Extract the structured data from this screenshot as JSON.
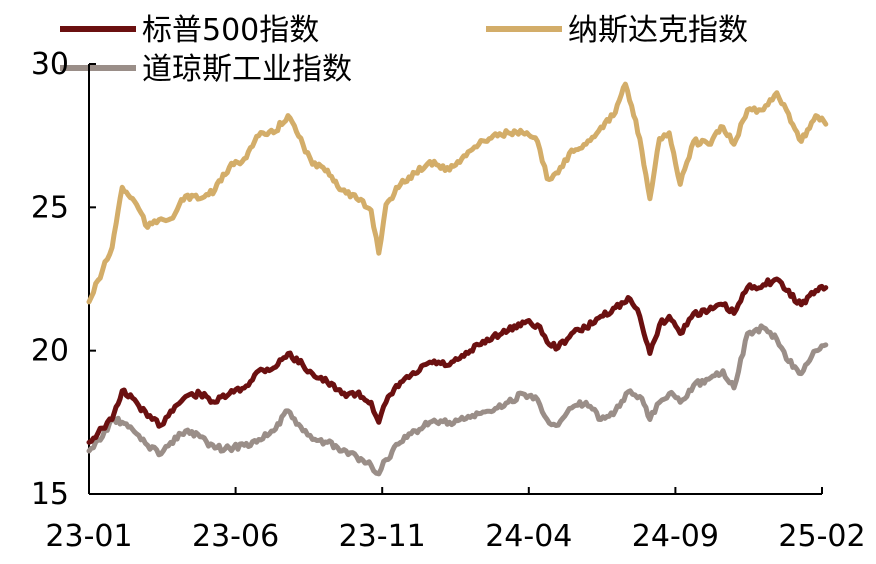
{
  "chart_data": {
    "type": "line",
    "title": "",
    "xlabel": "",
    "ylabel": "",
    "ylim": [
      15,
      30
    ],
    "yticks": [
      "15",
      "20",
      "25",
      "30"
    ],
    "xticks": [
      "23-01",
      "23-06",
      "23-11",
      "24-04",
      "24-09",
      "25-02"
    ],
    "xlim_months": [
      "2023-01",
      "2025-02"
    ],
    "grid": false,
    "legend_position": "top",
    "series": [
      {
        "name": "标普500指数",
        "color": "#6b1010",
        "points": [
          [
            "2023-01-01",
            16.8
          ],
          [
            "2023-01-15",
            17.3
          ],
          [
            "2023-01-25",
            17.6
          ],
          [
            "2023-02-05",
            18.6
          ],
          [
            "2023-02-20",
            18.2
          ],
          [
            "2023-03-01",
            17.7
          ],
          [
            "2023-03-15",
            17.4
          ],
          [
            "2023-03-25",
            17.9
          ],
          [
            "2023-04-10",
            18.4
          ],
          [
            "2023-04-25",
            18.5
          ],
          [
            "2023-05-10",
            18.2
          ],
          [
            "2023-05-25",
            18.5
          ],
          [
            "2023-06-10",
            18.7
          ],
          [
            "2023-06-25",
            19.3
          ],
          [
            "2023-07-10",
            19.4
          ],
          [
            "2023-07-25",
            19.9
          ],
          [
            "2023-08-10",
            19.5
          ],
          [
            "2023-08-20",
            19.2
          ],
          [
            "2023-09-05",
            18.9
          ],
          [
            "2023-09-20",
            18.5
          ],
          [
            "2023-10-05",
            18.5
          ],
          [
            "2023-10-20",
            18.2
          ],
          [
            "2023-10-28",
            17.5
          ],
          [
            "2023-11-05",
            18.2
          ],
          [
            "2023-11-20",
            18.9
          ],
          [
            "2023-12-05",
            19.2
          ],
          [
            "2023-12-20",
            19.6
          ],
          [
            "2024-01-10",
            19.5
          ],
          [
            "2024-01-25",
            19.8
          ],
          [
            "2024-02-10",
            20.2
          ],
          [
            "2024-02-25",
            20.5
          ],
          [
            "2024-03-10",
            20.7
          ],
          [
            "2024-03-25",
            21.0
          ],
          [
            "2024-04-10",
            20.9
          ],
          [
            "2024-04-20",
            20.3
          ],
          [
            "2024-05-01",
            20.1
          ],
          [
            "2024-05-15",
            20.6
          ],
          [
            "2024-05-30",
            20.8
          ],
          [
            "2024-06-15",
            21.2
          ],
          [
            "2024-06-30",
            21.5
          ],
          [
            "2024-07-15",
            21.8
          ],
          [
            "2024-07-25",
            21.2
          ],
          [
            "2024-08-05",
            19.9
          ],
          [
            "2024-08-15",
            20.9
          ],
          [
            "2024-08-25",
            21.2
          ],
          [
            "2024-09-06",
            20.6
          ],
          [
            "2024-09-20",
            21.3
          ],
          [
            "2024-10-05",
            21.4
          ],
          [
            "2024-10-20",
            21.6
          ],
          [
            "2024-11-01",
            21.3
          ],
          [
            "2024-11-15",
            22.2
          ],
          [
            "2024-12-01",
            22.3
          ],
          [
            "2024-12-15",
            22.5
          ],
          [
            "2024-12-25",
            22.1
          ],
          [
            "2025-01-10",
            21.6
          ],
          [
            "2025-01-25",
            22.1
          ],
          [
            "2025-02-05",
            22.2
          ]
        ]
      },
      {
        "name": "纳斯达克指数",
        "color": "#d3ad69",
        "points": [
          [
            "2023-01-01",
            21.7
          ],
          [
            "2023-01-15",
            22.8
          ],
          [
            "2023-01-25",
            23.6
          ],
          [
            "2023-02-05",
            25.7
          ],
          [
            "2023-02-20",
            25.1
          ],
          [
            "2023-03-01",
            24.3
          ],
          [
            "2023-03-15",
            24.6
          ],
          [
            "2023-03-25",
            24.6
          ],
          [
            "2023-04-10",
            25.4
          ],
          [
            "2023-04-25",
            25.3
          ],
          [
            "2023-05-10",
            25.6
          ],
          [
            "2023-05-25",
            26.4
          ],
          [
            "2023-06-10",
            26.7
          ],
          [
            "2023-06-25",
            27.5
          ],
          [
            "2023-07-10",
            27.6
          ],
          [
            "2023-07-25",
            28.2
          ],
          [
            "2023-08-10",
            27.2
          ],
          [
            "2023-08-20",
            26.5
          ],
          [
            "2023-09-05",
            26.3
          ],
          [
            "2023-09-20",
            25.6
          ],
          [
            "2023-10-05",
            25.3
          ],
          [
            "2023-10-20",
            24.9
          ],
          [
            "2023-10-28",
            23.4
          ],
          [
            "2023-11-05",
            25.1
          ],
          [
            "2023-11-20",
            25.8
          ],
          [
            "2023-12-05",
            26.2
          ],
          [
            "2023-12-20",
            26.6
          ],
          [
            "2024-01-10",
            26.3
          ],
          [
            "2024-01-25",
            26.8
          ],
          [
            "2024-02-10",
            27.2
          ],
          [
            "2024-02-25",
            27.5
          ],
          [
            "2024-03-10",
            27.6
          ],
          [
            "2024-03-25",
            27.6
          ],
          [
            "2024-04-10",
            27.3
          ],
          [
            "2024-04-20",
            26.0
          ],
          [
            "2024-05-01",
            26.2
          ],
          [
            "2024-05-15",
            27.0
          ],
          [
            "2024-05-30",
            27.2
          ],
          [
            "2024-06-15",
            27.8
          ],
          [
            "2024-06-30",
            28.3
          ],
          [
            "2024-07-10",
            29.3
          ],
          [
            "2024-07-25",
            27.4
          ],
          [
            "2024-08-05",
            25.3
          ],
          [
            "2024-08-15",
            27.4
          ],
          [
            "2024-08-25",
            27.6
          ],
          [
            "2024-09-06",
            25.8
          ],
          [
            "2024-09-20",
            27.3
          ],
          [
            "2024-10-05",
            27.2
          ],
          [
            "2024-10-20",
            27.8
          ],
          [
            "2024-11-01",
            27.2
          ],
          [
            "2024-11-15",
            28.4
          ],
          [
            "2024-12-01",
            28.4
          ],
          [
            "2024-12-15",
            29.0
          ],
          [
            "2024-12-25",
            28.4
          ],
          [
            "2025-01-10",
            27.3
          ],
          [
            "2025-01-25",
            28.2
          ],
          [
            "2025-02-05",
            27.9
          ]
        ]
      },
      {
        "name": "道琼斯工业指数",
        "color": "#9a8e88",
        "points": [
          [
            "2023-01-01",
            16.5
          ],
          [
            "2023-01-15",
            17.0
          ],
          [
            "2023-01-25",
            17.6
          ],
          [
            "2023-02-05",
            17.5
          ],
          [
            "2023-02-20",
            17.1
          ],
          [
            "2023-03-01",
            16.7
          ],
          [
            "2023-03-15",
            16.4
          ],
          [
            "2023-03-25",
            16.8
          ],
          [
            "2023-04-10",
            17.2
          ],
          [
            "2023-04-25",
            17.0
          ],
          [
            "2023-05-10",
            16.6
          ],
          [
            "2023-05-25",
            16.6
          ],
          [
            "2023-06-10",
            16.7
          ],
          [
            "2023-06-25",
            16.9
          ],
          [
            "2023-07-10",
            17.2
          ],
          [
            "2023-07-25",
            17.9
          ],
          [
            "2023-08-10",
            17.2
          ],
          [
            "2023-08-20",
            16.9
          ],
          [
            "2023-09-05",
            16.8
          ],
          [
            "2023-09-20",
            16.5
          ],
          [
            "2023-10-05",
            16.3
          ],
          [
            "2023-10-20",
            16.0
          ],
          [
            "2023-10-28",
            15.7
          ],
          [
            "2023-11-05",
            16.2
          ],
          [
            "2023-11-20",
            16.8
          ],
          [
            "2023-12-05",
            17.2
          ],
          [
            "2023-12-20",
            17.5
          ],
          [
            "2024-01-10",
            17.5
          ],
          [
            "2024-01-25",
            17.6
          ],
          [
            "2024-02-10",
            17.8
          ],
          [
            "2024-02-25",
            17.9
          ],
          [
            "2024-03-10",
            18.2
          ],
          [
            "2024-03-25",
            18.5
          ],
          [
            "2024-04-10",
            18.3
          ],
          [
            "2024-04-20",
            17.6
          ],
          [
            "2024-05-01",
            17.4
          ],
          [
            "2024-05-15",
            18.0
          ],
          [
            "2024-05-30",
            18.2
          ],
          [
            "2024-06-15",
            17.6
          ],
          [
            "2024-06-30",
            17.9
          ],
          [
            "2024-07-15",
            18.6
          ],
          [
            "2024-07-25",
            18.4
          ],
          [
            "2024-08-05",
            17.6
          ],
          [
            "2024-08-15",
            18.2
          ],
          [
            "2024-08-25",
            18.5
          ],
          [
            "2024-09-06",
            18.2
          ],
          [
            "2024-09-20",
            18.8
          ],
          [
            "2024-10-05",
            19.0
          ],
          [
            "2024-10-20",
            19.3
          ],
          [
            "2024-11-01",
            18.7
          ],
          [
            "2024-11-15",
            20.6
          ],
          [
            "2024-12-01",
            20.8
          ],
          [
            "2024-12-15",
            20.4
          ],
          [
            "2024-12-25",
            19.7
          ],
          [
            "2025-01-10",
            19.2
          ],
          [
            "2025-01-25",
            20.0
          ],
          [
            "2025-02-05",
            20.2
          ]
        ]
      }
    ]
  }
}
